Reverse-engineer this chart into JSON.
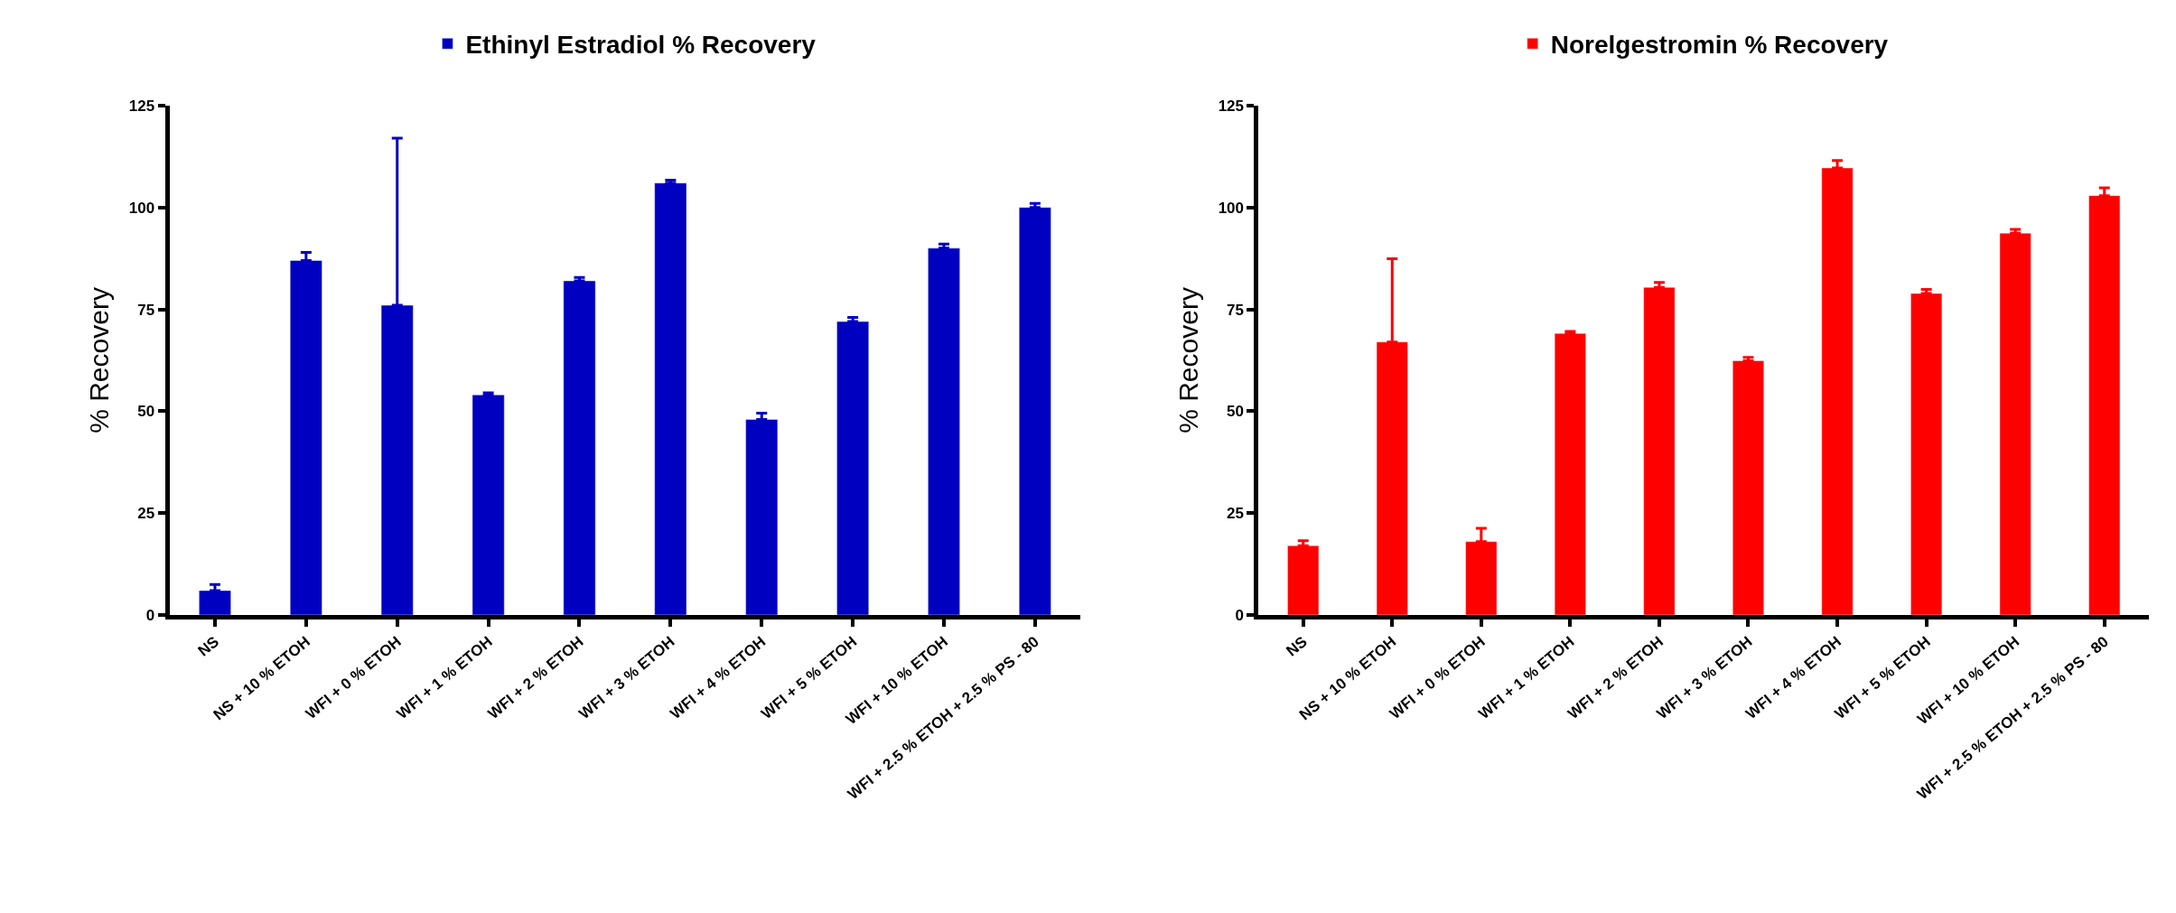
{
  "chart_data": [
    {
      "type": "bar",
      "ylabel": "% Recovery",
      "legend": "top",
      "categories": [
        "NS",
        "NS + 10 % ETOH",
        "WFI + 0 % ETOH",
        "WFI + 1 % ETOH",
        "WFI + 2 % ETOH",
        "WFI + 3 % ETOH",
        "WFI + 4 % ETOH",
        "WFI + 5 % ETOH",
        "WFI + 10 % ETOH",
        "WFI + 2.5 % ETOH + 2.5 % PS - 80"
      ],
      "series": [
        {
          "name": "Ethinyl Estradiol % Recovery",
          "color": "#0000c0",
          "values": [
            6,
            87,
            76,
            54,
            82,
            106,
            48,
            72,
            90,
            100
          ],
          "errors": [
            [
              6,
              7.5
            ],
            [
              87,
              89
            ],
            [
              76,
              117
            ],
            [
              54,
              54.5
            ],
            [
              82,
              82.8
            ],
            [
              106,
              106.7
            ],
            [
              48,
              49.5
            ],
            [
              72,
              73
            ],
            [
              90,
              91
            ],
            [
              100,
              101
            ]
          ]
        }
      ],
      "ylim": [
        0,
        125
      ],
      "yticks": [
        0,
        25,
        50,
        75,
        100,
        125
      ]
    },
    {
      "type": "bar",
      "ylabel": "% Recovery",
      "legend": "top",
      "categories": [
        "NS",
        "NS + 10 % ETOH",
        "WFI + 0 % ETOH",
        "WFI + 1 % ETOH",
        "WFI + 2 % ETOH",
        "WFI + 3 % ETOH",
        "WFI + 4 % ETOH",
        "WFI + 5 % ETOH",
        "WFI + 10 % ETOH",
        "WFI + 2.5 % ETOH + 2.5 % PS - 80"
      ],
      "series": [
        {
          "name": "Norelgestromin % Recovery",
          "color": "#ff0000",
          "values": [
            17,
            67,
            18,
            69.1,
            80.4,
            62.4,
            109.7,
            78.9,
            93.7,
            102.9
          ],
          "errors": [
            [
              17,
              18.2
            ],
            [
              67,
              87.4
            ],
            [
              18,
              21.3
            ],
            [
              69.1,
              69.6
            ],
            [
              80.4,
              81.6
            ],
            [
              62.4,
              63.2
            ],
            [
              109.7,
              111.5
            ],
            [
              78.9,
              79.9
            ],
            [
              93.7,
              94.6
            ],
            [
              102.9,
              104.8
            ]
          ]
        }
      ],
      "ylim": [
        0,
        125
      ],
      "yticks": [
        0,
        25,
        50,
        75,
        100,
        125
      ]
    }
  ]
}
